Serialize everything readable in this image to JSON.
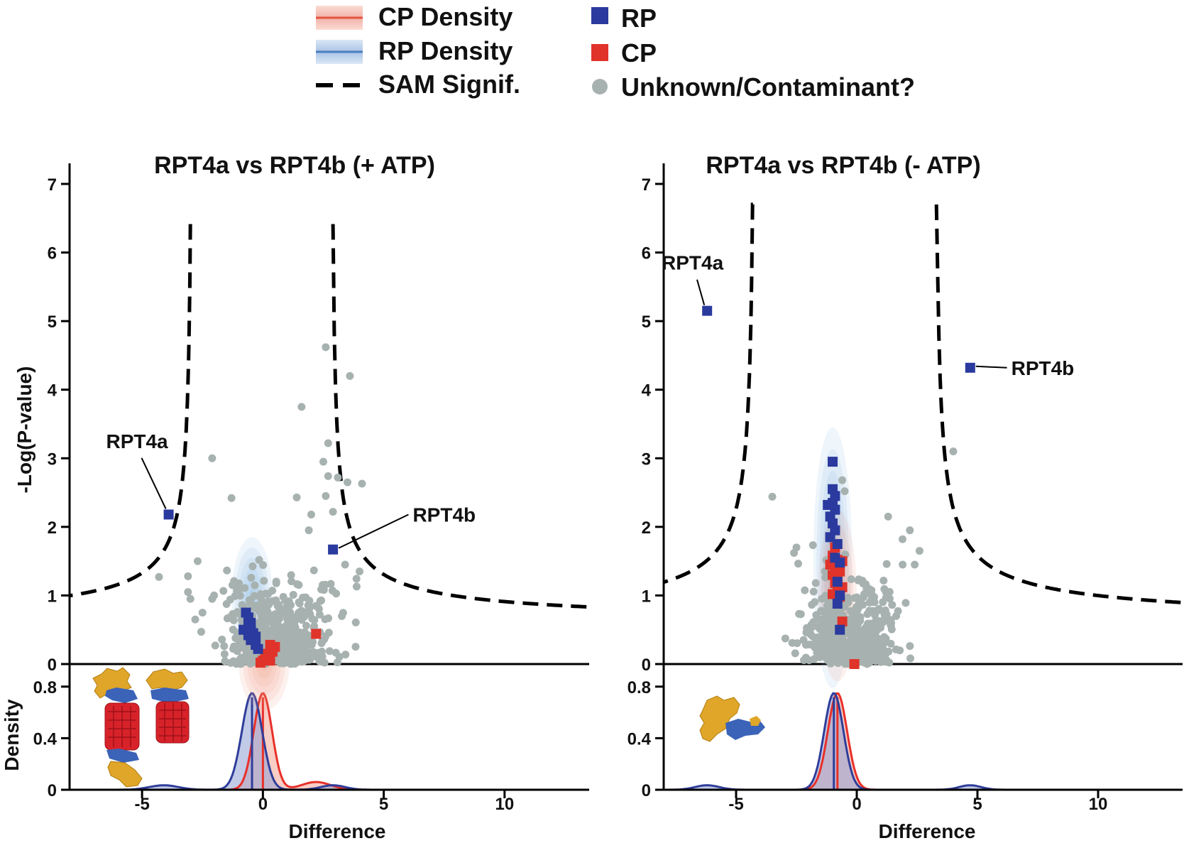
{
  "legend": {
    "items": [
      {
        "label": "CP Density",
        "kind": "density",
        "color": "#e4553f",
        "fill": "#f5b5a4"
      },
      {
        "label": "RP Density",
        "kind": "density",
        "color": "#4a7fc2",
        "fill": "#a9c7ea"
      },
      {
        "label": "SAM Signif.",
        "kind": "dash",
        "color": "#000000"
      },
      {
        "label": "RP",
        "kind": "square",
        "color": "#2b3a9e"
      },
      {
        "label": "CP",
        "kind": "square",
        "color": "#e0332a"
      },
      {
        "label": "Unknown/Contaminant?",
        "kind": "circle",
        "color": "#a7b2b0"
      }
    ]
  },
  "colors": {
    "rp": "#2b3a9e",
    "cp": "#e0332a",
    "unknown": "#a7b2b0",
    "cp_line": "#e8302a",
    "rp_line": "#2f3d9a"
  },
  "chart_data": [
    {
      "type": "scatter",
      "title": "RPT4a vs RPT4b (+ ATP)",
      "xlabel": "Difference",
      "ylabel": "-Log(P-value)",
      "density_ylabel": "Density",
      "xlim": [
        -8,
        13.5
      ],
      "ylim": [
        0,
        7.3
      ],
      "density_ylim": [
        0,
        0.92
      ],
      "xticks": [
        -5,
        0,
        5,
        10
      ],
      "yticks": [
        0,
        1,
        2,
        3,
        4,
        5,
        6,
        7
      ],
      "density_yticks": [
        0,
        0.4,
        0.8
      ],
      "sam_curve": {
        "s0": 0.35,
        "left_x0": -3.0,
        "right_x0": 2.9,
        "x_limit": 13.5,
        "y_max": 6.5
      },
      "labels": [
        {
          "text": "RPT4a",
          "point": [
            -3.9,
            2.18
          ],
          "label": [
            -5.9,
            3.15
          ]
        },
        {
          "text": "RPT4b",
          "point": [
            2.9,
            1.67
          ],
          "label": [
            6.2,
            2.18
          ]
        }
      ],
      "rp": [
        [
          -3.9,
          2.18
        ],
        [
          2.9,
          1.67
        ],
        [
          -0.7,
          0.75
        ],
        [
          -0.6,
          0.68
        ],
        [
          -0.5,
          0.6
        ],
        [
          -0.6,
          0.55
        ],
        [
          -0.8,
          0.5
        ],
        [
          -0.5,
          0.5
        ],
        [
          -0.4,
          0.45
        ],
        [
          -0.3,
          0.4
        ],
        [
          -0.6,
          0.42
        ],
        [
          -0.5,
          0.35
        ],
        [
          -0.3,
          0.28
        ],
        [
          -0.2,
          0.22
        ]
      ],
      "cp": [
        [
          2.2,
          0.44
        ],
        [
          0.3,
          0.28
        ],
        [
          0.5,
          0.25
        ],
        [
          0.4,
          0.18
        ],
        [
          0.2,
          0.15
        ],
        [
          0.1,
          0.1
        ],
        [
          0.0,
          0.05
        ],
        [
          0.3,
          0.05
        ],
        [
          -0.1,
          0.02
        ]
      ],
      "unknown_fixed": [
        [
          2.6,
          4.62
        ],
        [
          3.6,
          4.2
        ],
        [
          1.6,
          3.75
        ],
        [
          2.7,
          3.22
        ],
        [
          -2.1,
          3.0
        ],
        [
          2.5,
          2.95
        ],
        [
          2.7,
          2.74
        ],
        [
          3.1,
          2.72
        ],
        [
          3.5,
          2.65
        ],
        [
          4.1,
          2.63
        ],
        [
          2.6,
          2.45
        ],
        [
          1.4,
          2.43
        ],
        [
          2.0,
          2.18
        ],
        [
          -1.3,
          2.42
        ],
        [
          -4.3,
          1.27
        ],
        [
          -3.1,
          1.28
        ],
        [
          1.9,
          1.95
        ],
        [
          2.9,
          2.22
        ],
        [
          4.0,
          1.35
        ],
        [
          3.4,
          1.45
        ]
      ],
      "unknown_cloud": {
        "n": 520,
        "cx": 0.6,
        "sx": 1.05,
        "scale_y": 0.45,
        "seed": 7
      },
      "cloud_points": [
        [
          -3.1,
          1.05
        ],
        [
          -3.0,
          0.95
        ],
        [
          -2.7,
          1.5
        ],
        [
          -2.5,
          0.75
        ],
        [
          -2.1,
          0.95
        ],
        [
          -2.8,
          0.65
        ]
      ],
      "ellipses": [
        {
          "series": "rp",
          "cx": -0.45,
          "cy": 0.95,
          "rx": 0.85,
          "ry": 0.9
        },
        {
          "series": "cp",
          "cx": 0.05,
          "cy": 0.02,
          "rx": 1.05,
          "ry": 0.7
        }
      ],
      "density": {
        "rp": {
          "mean": -0.45,
          "sd": 0.42,
          "peak": 0.75,
          "bumps": [
            {
              "mean": -4.1,
              "sd": 0.6,
              "peak": 0.035
            },
            {
              "mean": 2.9,
              "sd": 0.5,
              "peak": 0.035
            }
          ]
        },
        "cp": {
          "mean": 0.0,
          "sd": 0.38,
          "peak": 0.75,
          "bumps": [
            {
              "mean": 2.2,
              "sd": 0.6,
              "peak": 0.06
            }
          ]
        },
        "rp_vline": -0.45,
        "cp_vline": 0.0
      },
      "inset_structures": "double-capped 26S proteasome models"
    },
    {
      "type": "scatter",
      "title": "RPT4a vs RPT4b (- ATP)",
      "xlabel": "Difference",
      "ylabel": "",
      "density_ylabel": "",
      "xlim": [
        -8,
        13.5
      ],
      "ylim": [
        0,
        7.3
      ],
      "density_ylim": [
        0,
        0.92
      ],
      "xticks": [
        -5,
        0,
        5,
        10
      ],
      "yticks": [
        0,
        1,
        2,
        3,
        4,
        5,
        6,
        7
      ],
      "density_yticks": [
        0,
        0.4,
        0.8
      ],
      "sam_curve": {
        "s0": 0.42,
        "left_x0": -4.3,
        "right_x0": 3.3,
        "x_limit": 13.5,
        "y_max": 6.7
      },
      "labels": [
        {
          "text": "RPT4a",
          "point": [
            -6.2,
            5.15
          ],
          "label": [
            -7.5,
            5.75
          ]
        },
        {
          "text": "RPT4b",
          "point": [
            4.7,
            4.32
          ],
          "label": [
            6.4,
            4.32
          ]
        }
      ],
      "rp": [
        [
          -6.2,
          5.15
        ],
        [
          4.7,
          4.32
        ],
        [
          -1.0,
          2.95
        ],
        [
          -1.0,
          2.55
        ],
        [
          -0.9,
          2.45
        ],
        [
          -1.0,
          2.35
        ],
        [
          -1.2,
          2.32
        ],
        [
          -0.9,
          2.25
        ],
        [
          -1.1,
          2.15
        ],
        [
          -1.0,
          2.05
        ],
        [
          -0.9,
          1.95
        ],
        [
          -1.1,
          1.85
        ],
        [
          -0.8,
          1.75
        ],
        [
          -0.9,
          1.55
        ],
        [
          -0.7,
          1.48
        ],
        [
          -0.8,
          1.2
        ],
        [
          -0.7,
          1.0
        ],
        [
          -0.8,
          0.88
        ],
        [
          -0.7,
          0.5
        ]
      ],
      "cp": [
        [
          -0.9,
          1.7
        ],
        [
          -1.0,
          1.58
        ],
        [
          -0.8,
          1.52
        ],
        [
          -0.6,
          1.5
        ],
        [
          -1.1,
          1.45
        ],
        [
          -0.9,
          1.4
        ],
        [
          -0.7,
          1.35
        ],
        [
          -1.0,
          1.3
        ],
        [
          -0.8,
          1.25
        ],
        [
          -0.9,
          1.18
        ],
        [
          -0.6,
          1.12
        ],
        [
          -0.8,
          1.08
        ],
        [
          -1.0,
          1.02
        ],
        [
          -0.7,
          0.98
        ],
        [
          -0.6,
          0.62
        ],
        [
          -0.1,
          0.0
        ]
      ],
      "unknown_fixed": [
        [
          4.0,
          3.1
        ],
        [
          -3.5,
          2.44
        ],
        [
          -0.6,
          2.68
        ],
        [
          -0.5,
          2.52
        ],
        [
          1.3,
          2.15
        ],
        [
          2.2,
          1.95
        ],
        [
          -1.7,
          1.18
        ],
        [
          -2.5,
          1.7
        ],
        [
          -2.6,
          1.62
        ],
        [
          1.9,
          1.45
        ],
        [
          2.6,
          1.65
        ],
        [
          2.4,
          1.45
        ]
      ],
      "unknown_cloud": {
        "n": 520,
        "cx": -0.2,
        "sx": 0.95,
        "scale_y": 0.45,
        "seed": 13
      },
      "cloud_points": [],
      "ellipses": [
        {
          "series": "rp",
          "cx": -1.0,
          "cy": 1.55,
          "rx": 0.8,
          "ry": 1.9
        },
        {
          "series": "cp",
          "cx": -0.8,
          "cy": 1.0,
          "rx": 0.8,
          "ry": 1.25
        }
      ],
      "density": {
        "rp": {
          "mean": -0.95,
          "sd": 0.4,
          "peak": 0.75,
          "bumps": [
            {
              "mean": -6.2,
              "sd": 0.5,
              "peak": 0.035
            },
            {
              "mean": 4.7,
              "sd": 0.45,
              "peak": 0.035
            }
          ]
        },
        "cp": {
          "mean": -0.8,
          "sd": 0.4,
          "peak": 0.75,
          "bumps": []
        },
        "rp_vline": -0.95,
        "cp_vline": -0.8
      },
      "inset_structures": "single-capped regulatory particle model"
    }
  ]
}
